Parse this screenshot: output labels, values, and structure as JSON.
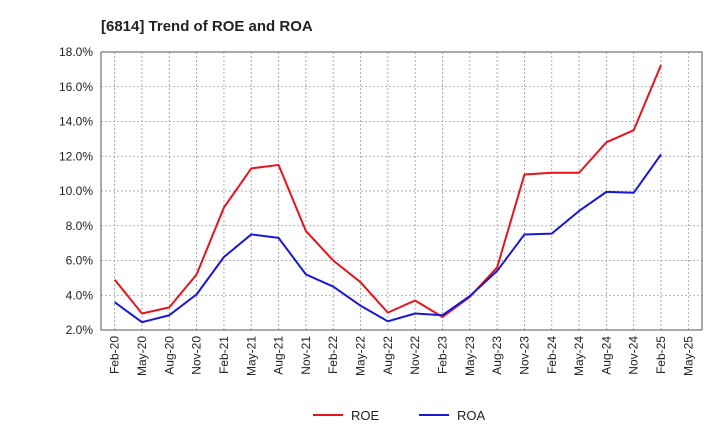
{
  "chart_data": {
    "type": "line",
    "title": "[6814]  Trend of ROE and ROA",
    "xlabel": "",
    "ylabel": "",
    "categories": [
      "Feb-20",
      "May-20",
      "Aug-20",
      "Nov-20",
      "Feb-21",
      "May-21",
      "Aug-21",
      "Nov-21",
      "Feb-22",
      "May-22",
      "Aug-22",
      "Nov-22",
      "Feb-23",
      "May-23",
      "Aug-23",
      "Nov-23",
      "Feb-24",
      "May-24",
      "Aug-24",
      "Nov-24",
      "Feb-25",
      "May-25"
    ],
    "ylim": [
      2.0,
      18.0
    ],
    "yticks": [
      "2.0%",
      "4.0%",
      "6.0%",
      "8.0%",
      "10.0%",
      "12.0%",
      "14.0%",
      "16.0%",
      "18.0%"
    ],
    "grid": true,
    "legend_position": "bottom",
    "series": [
      {
        "name": "ROE",
        "color": "#e8141c",
        "values": [
          4.9,
          2.95,
          3.3,
          5.2,
          9.05,
          11.3,
          11.5,
          7.7,
          6.0,
          4.75,
          3.0,
          3.7,
          2.75,
          3.9,
          5.6,
          10.95,
          11.05,
          11.05,
          12.8,
          13.5,
          17.25,
          null
        ]
      },
      {
        "name": "ROA",
        "color": "#1818d6",
        "values": [
          3.6,
          2.45,
          2.85,
          4.05,
          6.2,
          7.5,
          7.3,
          5.2,
          4.5,
          3.4,
          2.5,
          2.95,
          2.85,
          3.95,
          5.4,
          7.5,
          7.55,
          8.85,
          9.95,
          9.9,
          12.1,
          null
        ]
      }
    ]
  }
}
